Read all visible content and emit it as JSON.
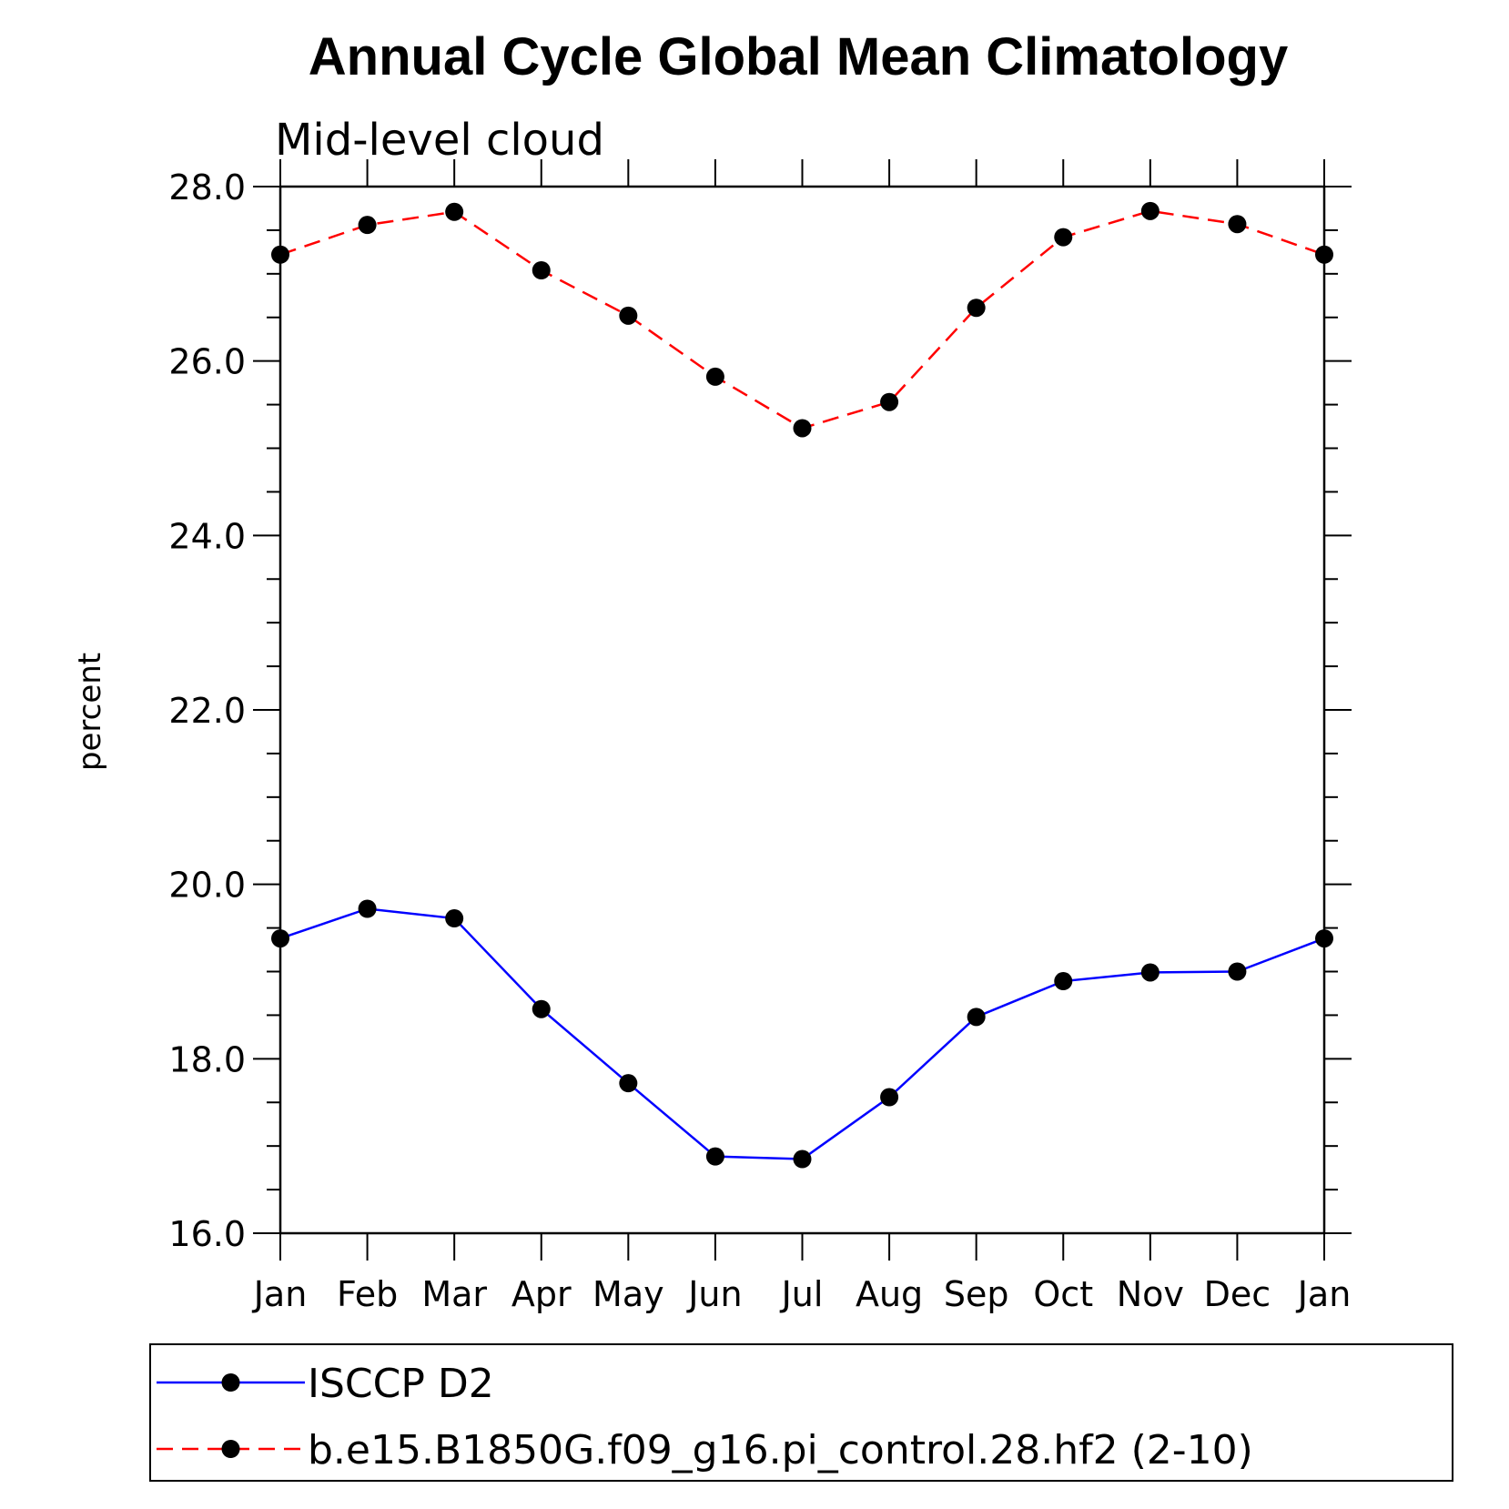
{
  "chart_data": {
    "type": "line",
    "title": "Annual Cycle Global Mean Climatology",
    "subtitle": "Mid-level cloud",
    "xlabel": "",
    "ylabel": "percent",
    "ylim": [
      16.0,
      28.0
    ],
    "yticks": [
      "16.0",
      "18.0",
      "20.0",
      "22.0",
      "24.0",
      "26.0",
      "28.0"
    ],
    "categories": [
      "Jan",
      "Feb",
      "Mar",
      "Apr",
      "May",
      "Jun",
      "Jul",
      "Aug",
      "Sep",
      "Oct",
      "Nov",
      "Dec",
      "Jan"
    ],
    "series": [
      {
        "name": "ISCCP D2",
        "color": "#0000ff",
        "dash": "solid",
        "marker": "filled-circle",
        "values": [
          19.38,
          19.72,
          19.61,
          18.57,
          17.72,
          16.88,
          16.85,
          17.56,
          18.48,
          18.89,
          18.99,
          19.0,
          19.38
        ]
      },
      {
        "name": "b.e15.B1850G.f09_g16.pi_control.28.hf2 (2-10)",
        "color": "#ff0000",
        "dash": "dashed",
        "marker": "filled-circle",
        "values": [
          27.22,
          27.56,
          27.71,
          27.04,
          26.52,
          25.82,
          25.23,
          25.53,
          26.61,
          27.42,
          27.72,
          27.57,
          27.22
        ]
      }
    ],
    "legend_position": "bottom"
  }
}
